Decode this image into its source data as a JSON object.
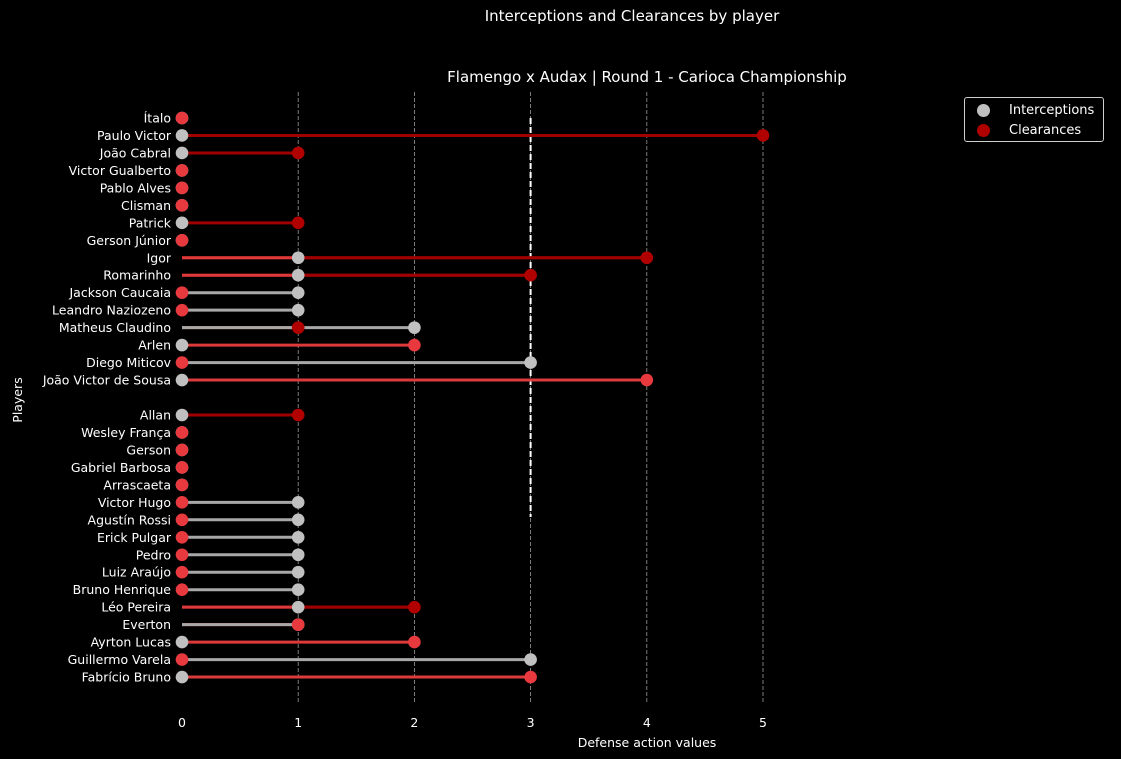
{
  "chart_data": {
    "type": "lollipop",
    "suptitle": "Interceptions and Clearances by player",
    "title": "Flamengo x Audax | Round 1 - Carioca Championship",
    "xlabel": "Defense action values",
    "ylabel": "Players",
    "xlim": [
      0,
      5
    ],
    "xticks": [
      "0",
      "1",
      "2",
      "3",
      "4",
      "5"
    ],
    "grid": "vertical dashed",
    "reference_line_x": 3,
    "legend_placement": "upper right outside",
    "colors": {
      "interceptions": "#c0c0c0",
      "clearances": "#b00000",
      "clearances_alt": "#e8393f",
      "line_interceptions": "#a8a8a8",
      "line_clearances_dark": "#a00000",
      "line_clearances_light": "#dd3b3b"
    },
    "series": [
      {
        "name": "Interceptions"
      },
      {
        "name": "Clearances"
      }
    ],
    "audax": [
      {
        "player": "Ítalo",
        "interceptions": 0,
        "clearances": 0
      },
      {
        "player": "Paulo Victor",
        "interceptions": 0,
        "clearances": 5
      },
      {
        "player": "João Cabral",
        "interceptions": 0,
        "clearances": 1
      },
      {
        "player": "Victor Gualberto",
        "interceptions": 0,
        "clearances": 0
      },
      {
        "player": "Pablo Alves",
        "interceptions": 0,
        "clearances": 0
      },
      {
        "player": "Clisman",
        "interceptions": 0,
        "clearances": 0
      },
      {
        "player": "Patrick",
        "interceptions": 0,
        "clearances": 1
      },
      {
        "player": "Gerson Júnior",
        "interceptions": 0,
        "clearances": 0
      },
      {
        "player": "Igor",
        "interceptions": 1,
        "clearances": 4
      },
      {
        "player": "Romarinho",
        "interceptions": 1,
        "clearances": 3
      },
      {
        "player": "Jackson Caucaia",
        "interceptions": 1,
        "clearances": 0
      },
      {
        "player": "Leandro Naziozeno",
        "interceptions": 1,
        "clearances": 0
      },
      {
        "player": "Matheus Claudino",
        "interceptions": 2,
        "clearances": 1
      },
      {
        "player": "Arlen",
        "interceptions": 0,
        "clearances": 2
      },
      {
        "player": "Diego Miticov",
        "interceptions": 3,
        "clearances": 0
      },
      {
        "player": "João Victor de Sousa",
        "interceptions": 0,
        "clearances": 4
      }
    ],
    "flamengo": [
      {
        "player": "Allan",
        "interceptions": 0,
        "clearances": 1
      },
      {
        "player": "Wesley França",
        "interceptions": 0,
        "clearances": 0
      },
      {
        "player": "Gerson",
        "interceptions": 0,
        "clearances": 0
      },
      {
        "player": "Gabriel Barbosa",
        "interceptions": 0,
        "clearances": 0
      },
      {
        "player": "Arrascaeta",
        "interceptions": 0,
        "clearances": 0
      },
      {
        "player": "Victor Hugo",
        "interceptions": 1,
        "clearances": 0
      },
      {
        "player": "Agustín Rossi",
        "interceptions": 1,
        "clearances": 0
      },
      {
        "player": "Erick Pulgar",
        "interceptions": 1,
        "clearances": 0
      },
      {
        "player": "Pedro",
        "interceptions": 1,
        "clearances": 0
      },
      {
        "player": "Luiz Araújo",
        "interceptions": 1,
        "clearances": 0
      },
      {
        "player": "Bruno Henrique",
        "interceptions": 1,
        "clearances": 0
      },
      {
        "player": "Léo Pereira",
        "interceptions": 1,
        "clearances": 2
      },
      {
        "player": "Everton",
        "interceptions": 1,
        "clearances": 1
      },
      {
        "player": "Ayrton Lucas",
        "interceptions": 0,
        "clearances": 2
      },
      {
        "player": "Guillermo Varela",
        "interceptions": 3,
        "clearances": 0
      },
      {
        "player": "Fabrício Bruno",
        "interceptions": 0,
        "clearances": 3
      }
    ]
  }
}
